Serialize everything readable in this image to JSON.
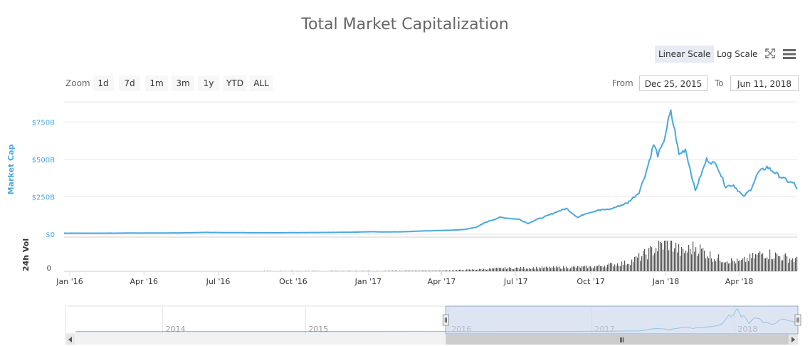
{
  "title": "Total Market Capitalization",
  "controls": {
    "linear_scale": "Linear Scale",
    "log_scale": "Log Scale",
    "zoom_label": "Zoom",
    "zoom_buttons": [
      "1d",
      "7d",
      "1m",
      "3m",
      "1y",
      "YTD",
      "ALL"
    ],
    "from_label": "From",
    "from_value": "Dec 25, 2015",
    "to_label": "To",
    "to_value": "Jun 11, 2018",
    "fullscreen_icon": "fullscreen-icon",
    "menu_icon": "hamburger-menu-icon"
  },
  "colors": {
    "series": "#4aa8dd",
    "volume": "#555555",
    "navigator_mask": "#c8d3ea"
  },
  "chart_data": [
    {
      "type": "line",
      "title": "Total Market Capitalization",
      "ylabel": "Market Cap",
      "yticks": [
        "$0",
        "$250B",
        "$500B",
        "$750B"
      ],
      "ylim": [
        0,
        820
      ],
      "xticks": [
        "Jan '16",
        "Apr '16",
        "Jul '16",
        "Oct '16",
        "Jan '17",
        "Apr '17",
        "Jul '17",
        "Oct '17",
        "Jan '18",
        "Apr '18"
      ],
      "grid": true,
      "series": [
        {
          "unit": "billion USD",
          "points": [
            [
              "2015-12-25",
              7
            ],
            [
              "2016-01-15",
              7
            ],
            [
              "2016-02-15",
              7
            ],
            [
              "2016-03-15",
              8
            ],
            [
              "2016-04-15",
              8
            ],
            [
              "2016-05-15",
              9
            ],
            [
              "2016-06-15",
              12
            ],
            [
              "2016-07-15",
              11
            ],
            [
              "2016-08-15",
              10
            ],
            [
              "2016-09-15",
              10
            ],
            [
              "2016-10-15",
              11
            ],
            [
              "2016-11-15",
              12
            ],
            [
              "2016-12-15",
              14
            ],
            [
              "2017-01-05",
              17
            ],
            [
              "2017-01-20",
              15
            ],
            [
              "2017-02-15",
              17
            ],
            [
              "2017-03-15",
              23
            ],
            [
              "2017-04-15",
              27
            ],
            [
              "2017-05-01",
              33
            ],
            [
              "2017-05-15",
              50
            ],
            [
              "2017-05-25",
              80
            ],
            [
              "2017-06-12",
              113
            ],
            [
              "2017-06-25",
              105
            ],
            [
              "2017-07-05",
              100
            ],
            [
              "2017-07-16",
              72
            ],
            [
              "2017-07-25",
              95
            ],
            [
              "2017-08-05",
              115
            ],
            [
              "2017-08-20",
              150
            ],
            [
              "2017-09-01",
              172
            ],
            [
              "2017-09-15",
              112
            ],
            [
              "2017-09-25",
              140
            ],
            [
              "2017-10-10",
              160
            ],
            [
              "2017-10-25",
              168
            ],
            [
              "2017-11-05",
              190
            ],
            [
              "2017-11-15",
              210
            ],
            [
              "2017-11-29",
              280
            ],
            [
              "2017-12-08",
              420
            ],
            [
              "2017-12-17",
              600
            ],
            [
              "2017-12-22",
              530
            ],
            [
              "2017-12-28",
              590
            ],
            [
              "2018-01-04",
              760
            ],
            [
              "2018-01-07",
              813
            ],
            [
              "2018-01-12",
              690
            ],
            [
              "2018-01-17",
              530
            ],
            [
              "2018-01-25",
              570
            ],
            [
              "2018-02-06",
              290
            ],
            [
              "2018-02-20",
              500
            ],
            [
              "2018-03-05",
              460
            ],
            [
              "2018-03-15",
              320
            ],
            [
              "2018-03-25",
              330
            ],
            [
              "2018-04-06",
              250
            ],
            [
              "2018-04-15",
              300
            ],
            [
              "2018-04-24",
              410
            ],
            [
              "2018-05-05",
              450
            ],
            [
              "2018-05-20",
              390
            ],
            [
              "2018-06-01",
              350
            ],
            [
              "2018-06-07",
              340
            ],
            [
              "2018-06-11",
              300
            ]
          ]
        }
      ]
    },
    {
      "type": "bar",
      "ylabel": "24h Vol",
      "yticks": [
        "0"
      ],
      "xticks": [
        "Jan '16",
        "Apr '16",
        "Jul '16",
        "Oct '16",
        "Jan '17",
        "Apr '17",
        "Jul '17",
        "Oct '17",
        "Jan '18",
        "Apr '18"
      ],
      "series": [
        {
          "points": [
            [
              "2015-12-25",
              0.3
            ],
            [
              "2016-07-01",
              0.4
            ],
            [
              "2017-01-01",
              0.6
            ],
            [
              "2017-04-01",
              1
            ],
            [
              "2017-05-15",
              3
            ],
            [
              "2017-06-15",
              5
            ],
            [
              "2017-08-15",
              6
            ],
            [
              "2017-10-01",
              7
            ],
            [
              "2017-11-15",
              14
            ],
            [
              "2017-12-10",
              30
            ],
            [
              "2017-12-22",
              40
            ],
            [
              "2018-01-05",
              48
            ],
            [
              "2018-01-20",
              30
            ],
            [
              "2018-02-06",
              40
            ],
            [
              "2018-03-01",
              22
            ],
            [
              "2018-04-01",
              15
            ],
            [
              "2018-05-01",
              30
            ],
            [
              "2018-06-11",
              18
            ]
          ]
        }
      ]
    },
    {
      "type": "area",
      "role": "navigator",
      "xticks": [
        "2014",
        "2015",
        "2016",
        "2017",
        "2018"
      ],
      "selection": [
        "2015-12-25",
        "2018-06-11"
      ]
    }
  ]
}
